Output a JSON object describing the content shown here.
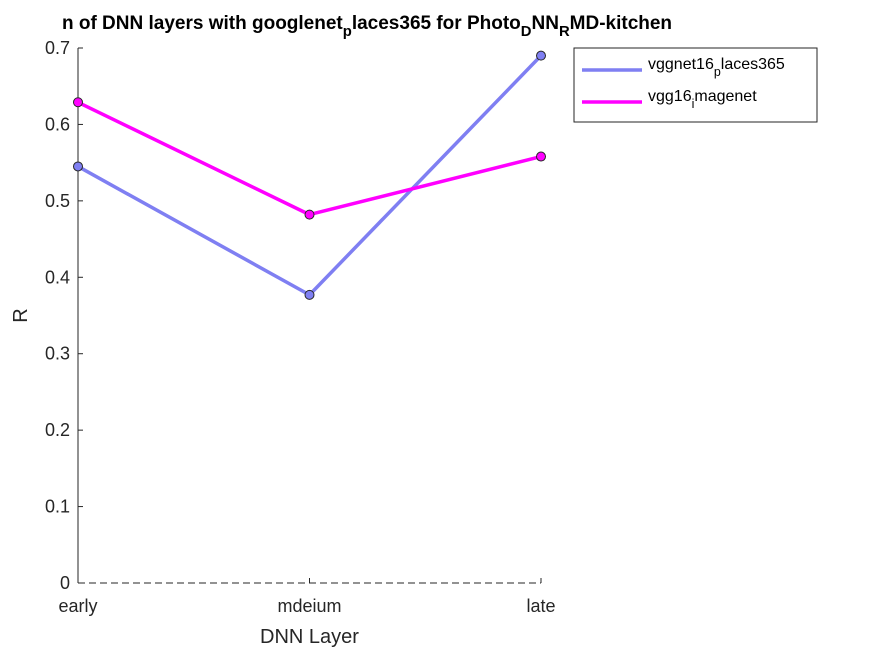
{
  "chart_data": {
    "type": "line",
    "title": {
      "parts": [
        {
          "text": "n of DNN layers with googlenet",
          "sub": false
        },
        {
          "text": "p",
          "sub": true
        },
        {
          "text": "laces365 for Photo",
          "sub": false
        },
        {
          "text": "D",
          "sub": true
        },
        {
          "text": "NN",
          "sub": false
        },
        {
          "text": "R",
          "sub": true
        },
        {
          "text": "MD-kitchen",
          "sub": false
        }
      ]
    },
    "xlabel": "DNN Layer",
    "ylabel": "R",
    "categories": [
      "early",
      "mdeium",
      "late"
    ],
    "ylim": [
      0,
      0.7
    ],
    "yticks": [
      "0",
      "0.1",
      "0.2",
      "0.3",
      "0.4",
      "0.5",
      "0.6",
      "0.7"
    ],
    "grid": false,
    "legend_position": "top-right outside",
    "series": [
      {
        "name": "vggnet16_places365",
        "legend_parts": [
          {
            "text": "vggnet16",
            "sub": false
          },
          {
            "text": "p",
            "sub": true
          },
          {
            "text": "laces365",
            "sub": false
          }
        ],
        "color": "#7f7ff2",
        "values": [
          0.545,
          0.377,
          0.69
        ]
      },
      {
        "name": "vgg16_imagenet",
        "legend_parts": [
          {
            "text": "vgg16",
            "sub": false
          },
          {
            "text": "i",
            "sub": true
          },
          {
            "text": "magenet",
            "sub": false
          }
        ],
        "color": "#ff00ff",
        "values": [
          0.629,
          0.482,
          0.558
        ]
      }
    ]
  }
}
